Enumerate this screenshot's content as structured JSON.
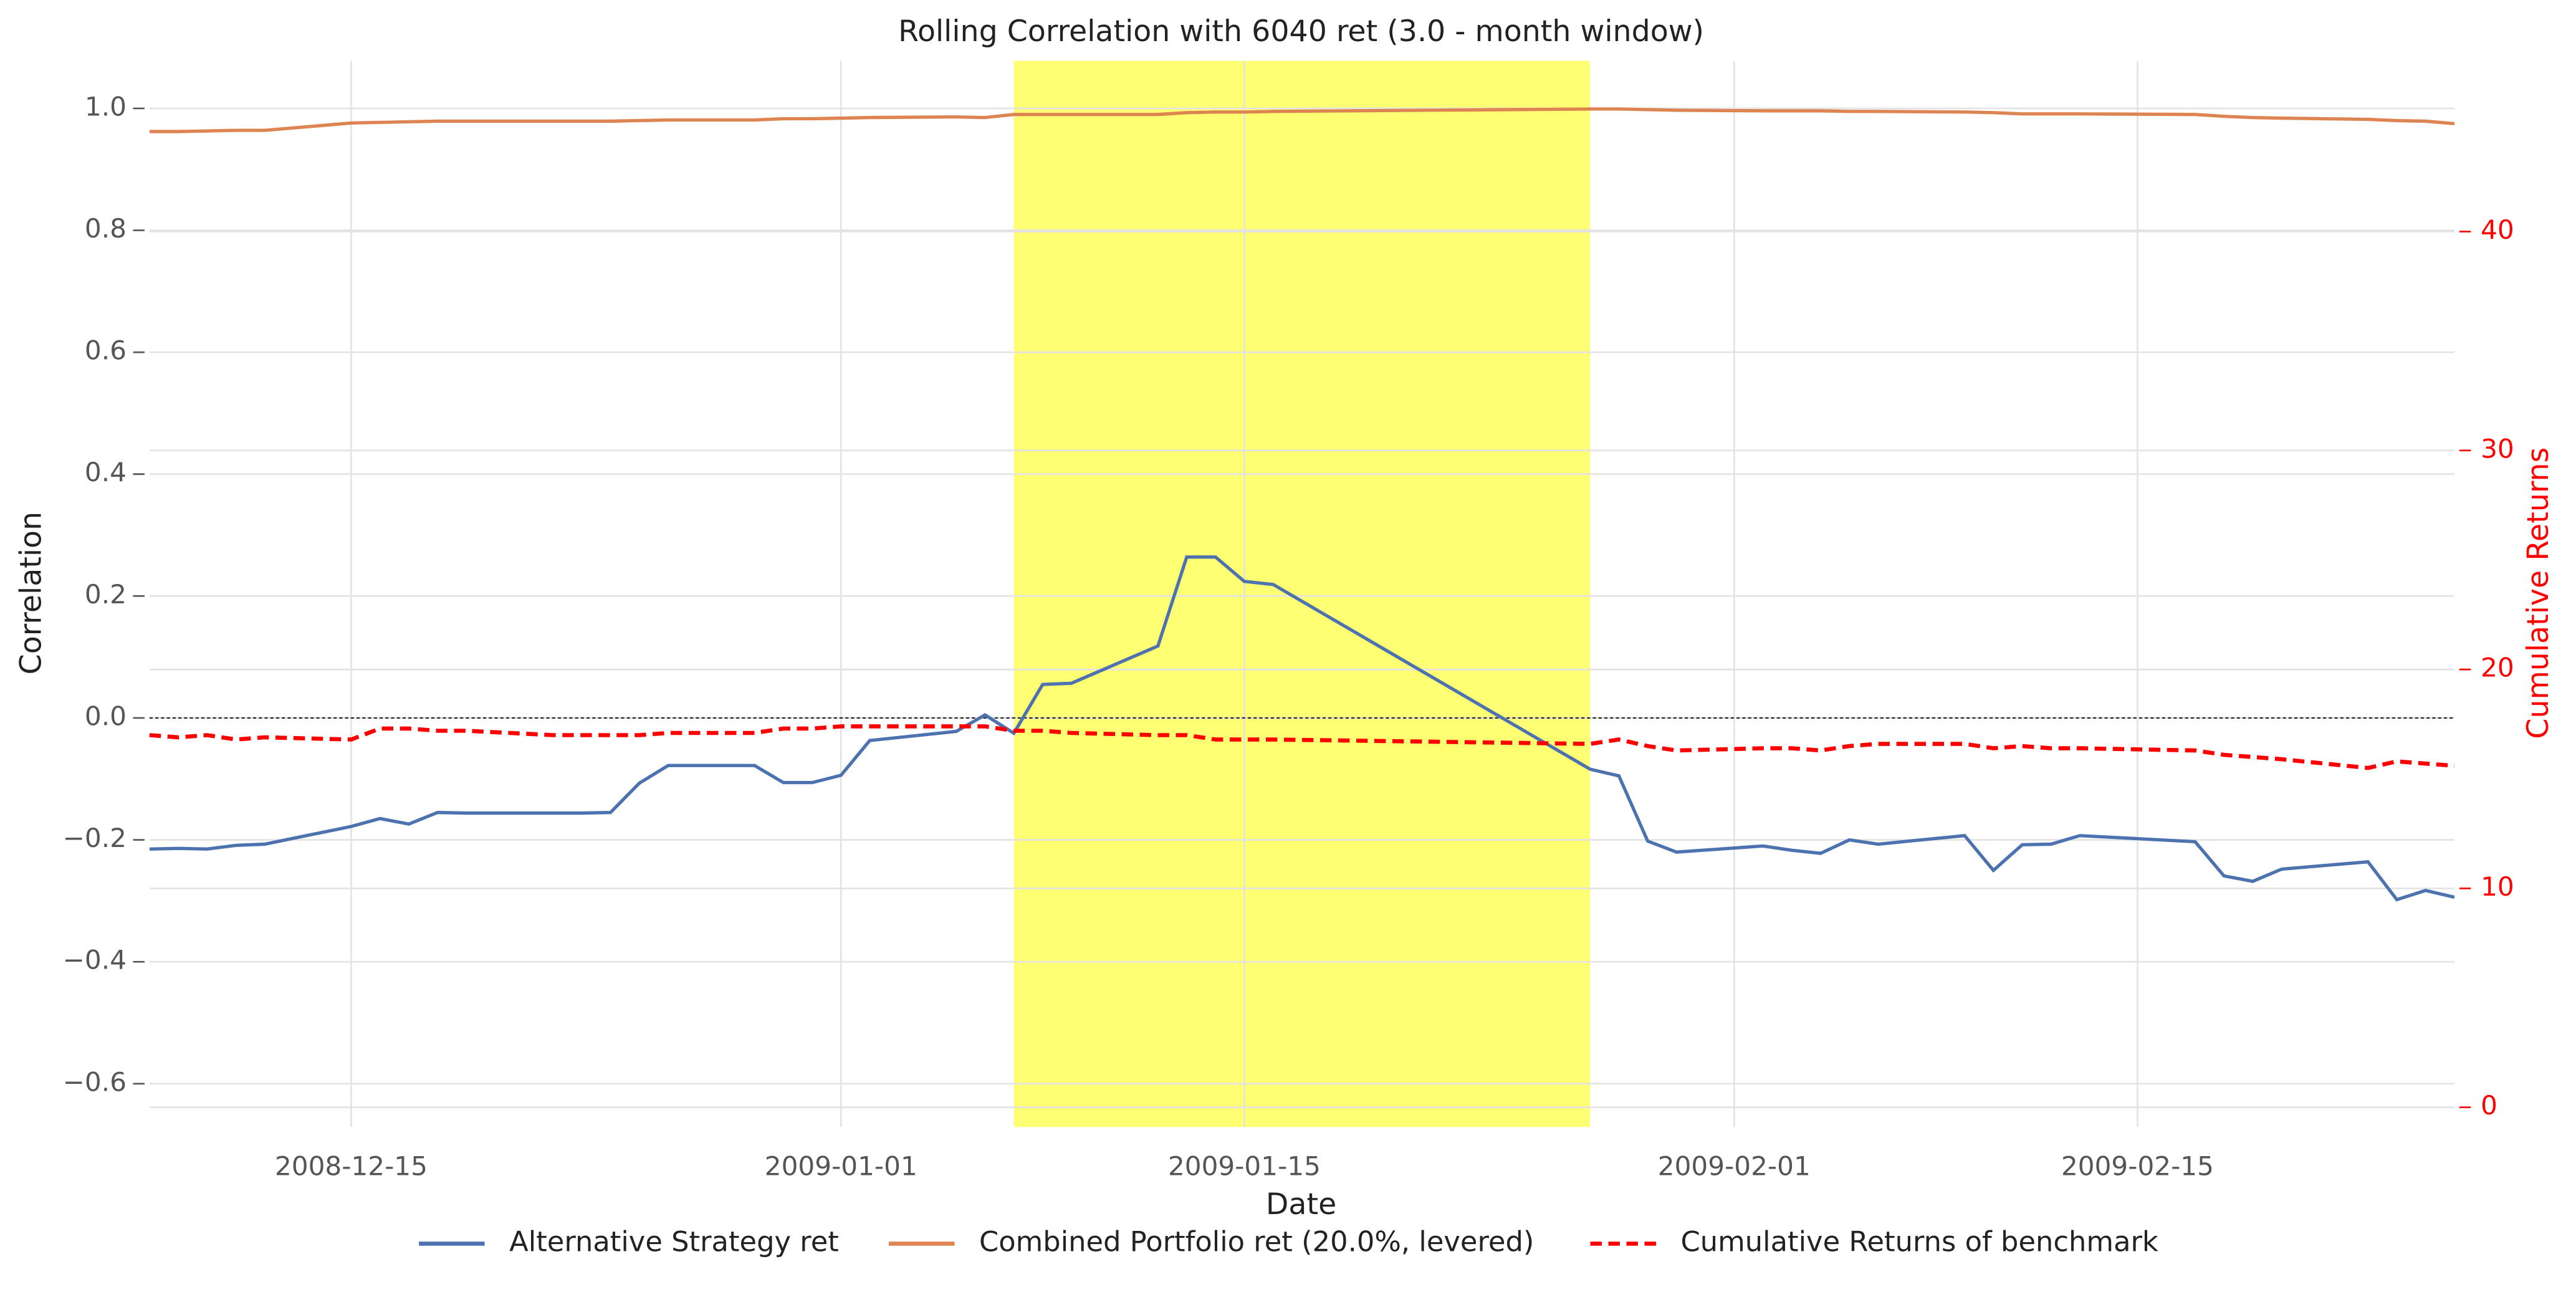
{
  "chart_data": {
    "type": "line",
    "title": "Rolling Correlation with 6040 ret (3.0 - month window)",
    "x_label": "Date",
    "y_label": "Correlation",
    "y2_label": "Cumulative Returns",
    "x": [
      "2008-12-08",
      "2008-12-09",
      "2008-12-10",
      "2008-12-11",
      "2008-12-12",
      "2008-12-15",
      "2008-12-16",
      "2008-12-17",
      "2008-12-18",
      "2008-12-19",
      "2008-12-22",
      "2008-12-23",
      "2008-12-24",
      "2008-12-25",
      "2008-12-26",
      "2008-12-29",
      "2008-12-30",
      "2008-12-31",
      "2009-01-01",
      "2009-01-02",
      "2009-01-05",
      "2009-01-06",
      "2009-01-07",
      "2009-01-08",
      "2009-01-09",
      "2009-01-12",
      "2009-01-13",
      "2009-01-14",
      "2009-01-15",
      "2009-01-16",
      "2009-01-27",
      "2009-01-28",
      "2009-01-29",
      "2009-01-30",
      "2009-02-02",
      "2009-02-03",
      "2009-02-04",
      "2009-02-05",
      "2009-02-06",
      "2009-02-09",
      "2009-02-10",
      "2009-02-11",
      "2009-02-12",
      "2009-02-13",
      "2009-02-17",
      "2009-02-18",
      "2009-02-19",
      "2009-02-20",
      "2009-02-23",
      "2009-02-24",
      "2009-02-25",
      "2009-02-26"
    ],
    "series": [
      {
        "name": "Alternative Strategy ret",
        "color": "#4c72b0",
        "dash": "solid",
        "values": [
          -0.215,
          -0.214,
          -0.215,
          -0.209,
          -0.207,
          -0.178,
          -0.165,
          -0.174,
          -0.155,
          -0.156,
          -0.156,
          -0.156,
          -0.155,
          -0.107,
          -0.078,
          -0.078,
          -0.106,
          -0.106,
          -0.094,
          -0.037,
          -0.022,
          0.005,
          -0.025,
          0.055,
          0.057,
          0.118,
          0.264,
          0.264,
          0.224,
          0.219,
          -0.084,
          -0.095,
          -0.202,
          -0.22,
          -0.21,
          -0.217,
          -0.222,
          -0.2,
          -0.207,
          -0.193,
          -0.25,
          -0.208,
          -0.207,
          -0.193,
          -0.203,
          -0.259,
          -0.268,
          -0.248,
          -0.236,
          -0.298,
          -0.283,
          -0.294
        ]
      },
      {
        "name": "Combined Portfolio ret (20.0%, levered)",
        "color": "#dd8452",
        "dash": "solid",
        "values": [
          0.962,
          0.962,
          0.963,
          0.964,
          0.964,
          0.976,
          0.977,
          0.978,
          0.979,
          0.979,
          0.979,
          0.979,
          0.979,
          0.98,
          0.981,
          0.981,
          0.983,
          0.983,
          0.984,
          0.985,
          0.986,
          0.985,
          0.99,
          0.99,
          0.99,
          0.99,
          0.993,
          0.994,
          0.994,
          0.995,
          0.999,
          0.999,
          0.998,
          0.997,
          0.996,
          0.996,
          0.996,
          0.995,
          0.995,
          0.994,
          0.993,
          0.991,
          0.991,
          0.991,
          0.99,
          0.987,
          0.985,
          0.984,
          0.982,
          0.98,
          0.979,
          0.975
        ]
      },
      {
        "name": "Cumulative Returns of benchmark",
        "color": "#ff0000",
        "dash": "dashed",
        "axis": "y2",
        "values": [
          17.0,
          16.9,
          17.0,
          16.8,
          16.9,
          16.8,
          17.3,
          17.3,
          17.2,
          17.2,
          17.0,
          17.0,
          17.0,
          17.0,
          17.1,
          17.1,
          17.3,
          17.3,
          17.4,
          17.4,
          17.4,
          17.4,
          17.2,
          17.2,
          17.1,
          17.0,
          17.0,
          16.8,
          16.8,
          16.8,
          16.6,
          16.8,
          16.5,
          16.3,
          16.4,
          16.4,
          16.3,
          16.5,
          16.6,
          16.6,
          16.4,
          16.5,
          16.4,
          16.4,
          16.3,
          16.1,
          16.0,
          15.9,
          15.5,
          15.8,
          15.7,
          15.6
        ]
      }
    ],
    "xlim": [
      "2008-12-08",
      "2009-02-26"
    ],
    "xticks": [
      "2008-12-15",
      "2009-01-01",
      "2009-01-15",
      "2009-02-01",
      "2009-02-15"
    ],
    "ylim": [
      -0.671,
      1.078
    ],
    "yticks": [
      {
        "value": -0.6,
        "label": "−0.6"
      },
      {
        "value": -0.4,
        "label": "−0.4"
      },
      {
        "value": -0.2,
        "label": "−0.2"
      },
      {
        "value": 0,
        "label": "0.0"
      },
      {
        "value": 0.2,
        "label": "0.2"
      },
      {
        "value": 0.4,
        "label": "0.4"
      },
      {
        "value": 0.6,
        "label": "0.6"
      },
      {
        "value": 0.8,
        "label": "0.8"
      },
      {
        "value": 1,
        "label": "1.0"
      }
    ],
    "y2lim": [
      -0.9,
      47.8
    ],
    "y2ticks": [
      0,
      10,
      20,
      30,
      40
    ],
    "y2_color": "#ff0000",
    "highlight": {
      "x": [
        "2009-01-07",
        "2009-01-27"
      ],
      "color": "#ffff00"
    },
    "hline": 0,
    "grid": true,
    "legend": "bottom"
  }
}
